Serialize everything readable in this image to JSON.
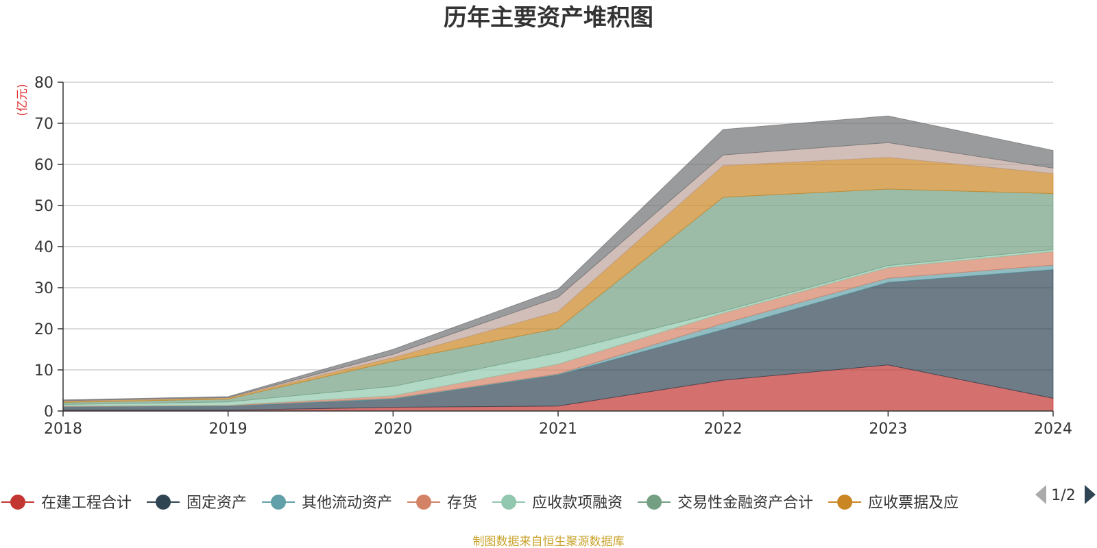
{
  "chart_data": {
    "type": "area",
    "stacked": true,
    "title": "历年主要资产堆积图",
    "unit_label": "(亿元)",
    "x": [
      "2018",
      "2019",
      "2020",
      "2021",
      "2022",
      "2023",
      "2024"
    ],
    "ylim": [
      0,
      80
    ],
    "yticks": [
      0,
      10,
      20,
      30,
      40,
      50,
      60,
      70,
      80
    ],
    "grid": true,
    "legend_position": "bottom",
    "legend_page": "1/2",
    "series": [
      {
        "name": "在建工程合计",
        "color": "#c23531",
        "values": [
          0.2,
          0.2,
          0.9,
          1.2,
          7.5,
          11.2,
          3.1
        ]
      },
      {
        "name": "固定资产",
        "color": "#2f4554",
        "values": [
          0.8,
          1.0,
          2.0,
          7.6,
          12.3,
          20.1,
          31.3
        ]
      },
      {
        "name": "其他流动资产",
        "color": "#61a0a8",
        "values": [
          0.1,
          0.1,
          0.2,
          0.2,
          1.5,
          1.0,
          1.1
        ]
      },
      {
        "name": "存货",
        "color": "#d48265",
        "values": [
          0.1,
          0.1,
          0.6,
          2.4,
          2.5,
          2.6,
          3.3
        ]
      },
      {
        "name": "应收款项融资",
        "color": "#91c7ae",
        "values": [
          0.4,
          0.8,
          2.3,
          2.8,
          0.5,
          0.5,
          0.5
        ]
      },
      {
        "name": "交易性金融资产合计",
        "color": "#749f83",
        "values": [
          0.5,
          0.7,
          6.1,
          5.9,
          27.7,
          18.6,
          13.6
        ]
      },
      {
        "name": "应收票据及应",
        "color": "#ca8622",
        "values": [
          0.3,
          0.3,
          0.9,
          4.1,
          7.7,
          7.7,
          4.9
        ]
      },
      {
        "color": "#bda29a",
        "values": [
          0.1,
          0.1,
          0.8,
          3.5,
          2.6,
          3.6,
          1.3
        ]
      },
      {
        "color": "#6e7074",
        "values": [
          0.2,
          0.2,
          1.2,
          1.9,
          6.2,
          6.5,
          4.3
        ]
      }
    ]
  },
  "footer": {
    "source": "制图数据来自恒生聚源数据库"
  }
}
